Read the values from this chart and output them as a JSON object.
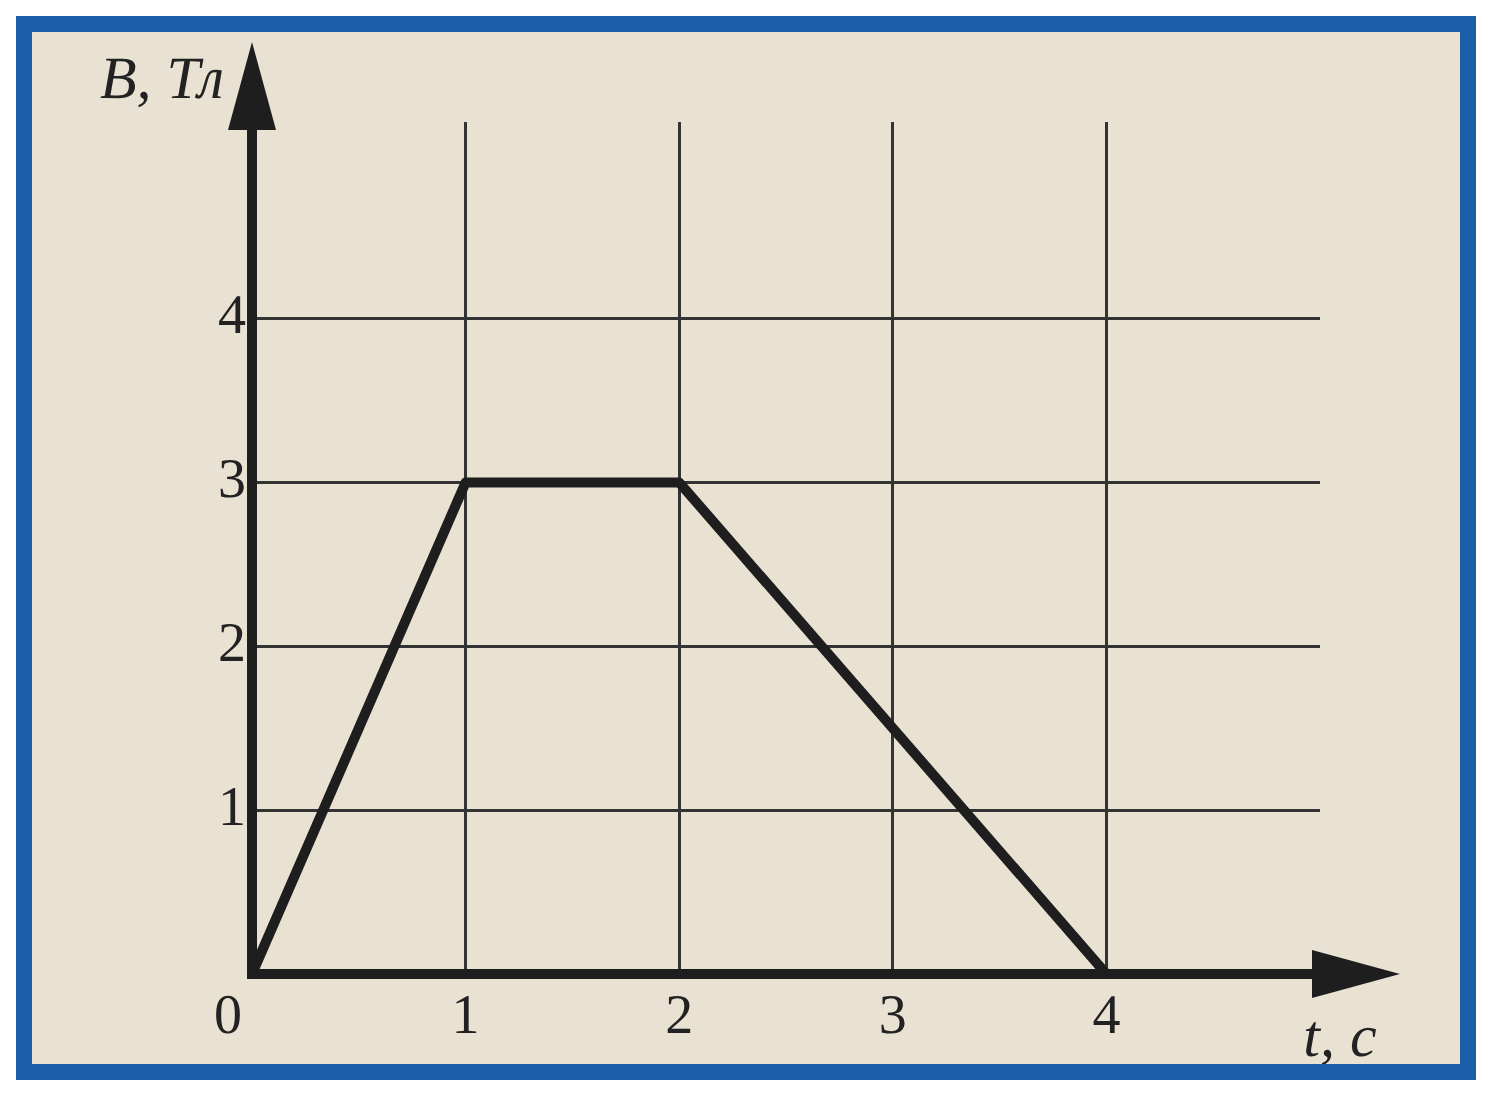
{
  "chart_data": {
    "type": "line",
    "xlabel": "t, c",
    "ylabel": "B, Тл",
    "x": [
      0,
      1,
      2,
      4
    ],
    "series": [
      {
        "color": "#1e1e1e",
        "values": [
          0,
          3,
          3,
          0
        ]
      }
    ],
    "xlim": [
      0,
      5
    ],
    "ylim": [
      0,
      5.2
    ],
    "xticks": [
      0,
      1,
      2,
      3,
      4
    ],
    "yticks": [
      1,
      2,
      3,
      4
    ],
    "grid": true,
    "legend": false,
    "marker": "none",
    "line_style": "solid"
  }
}
